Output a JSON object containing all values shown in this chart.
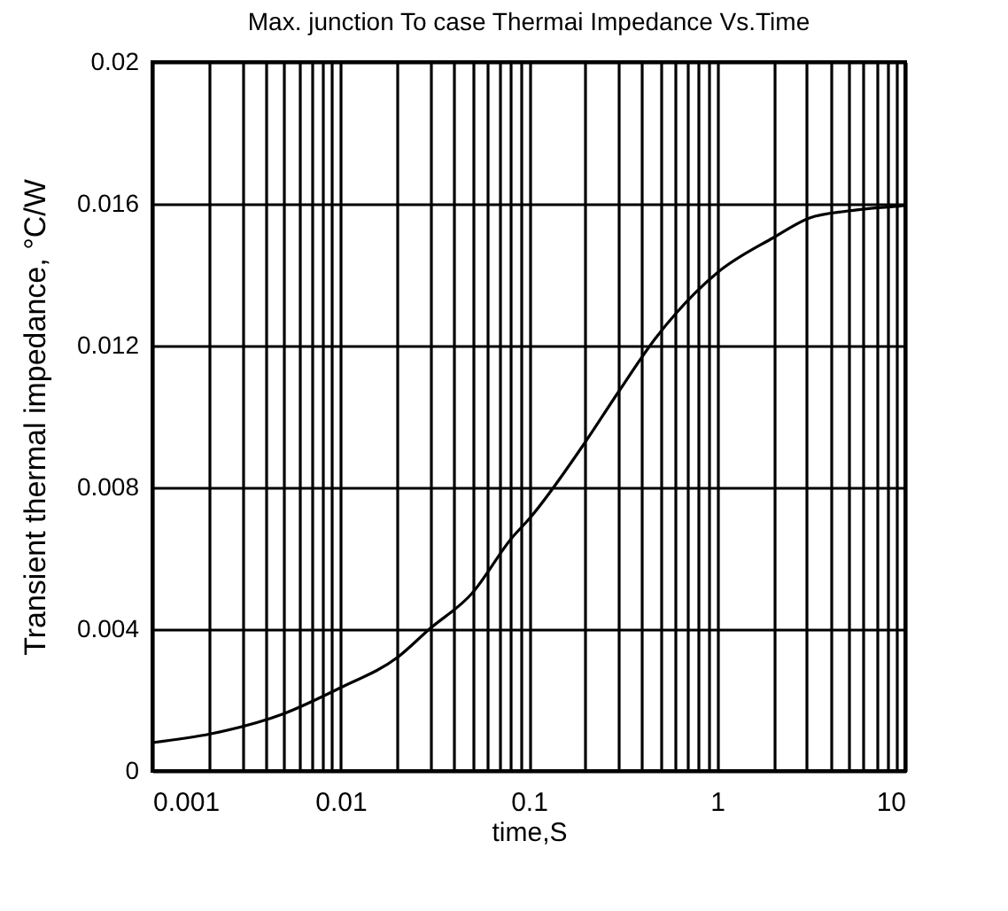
{
  "chart_data": {
    "type": "line",
    "title": "Max. junction To case Thermai Impedance Vs.Time",
    "xlabel": "time,S",
    "ylabel": "Transient thermal impedance, °C/W",
    "log": "x",
    "grid": true,
    "marker": "none",
    "line_style": "solid",
    "x": [
      0.001,
      0.00205,
      0.0049,
      0.01,
      0.02,
      0.0296,
      0.0497,
      0.082,
      0.1,
      0.195,
      0.3,
      0.47,
      1,
      2,
      3.1,
      5,
      10
    ],
    "series": [
      {
        "color": "#000000",
        "values": [
          0.0008,
          0.00105,
          0.0016,
          0.00235,
          0.0032,
          0.004,
          0.005,
          0.0066,
          0.0071,
          0.0092,
          0.0107,
          0.0122,
          0.01405,
          0.01505,
          0.0156,
          0.0158,
          0.01595
        ]
      }
    ],
    "xlim": [
      0.001,
      10
    ],
    "ylim": [
      0,
      0.02
    ],
    "xticks": [
      0.001,
      {
        "value": 0.002,
        "label": null
      },
      {
        "value": 0.003,
        "label": null
      },
      {
        "value": 0.004,
        "label": null
      },
      {
        "value": 0.005,
        "label": null
      },
      {
        "value": 0.006,
        "label": null
      },
      {
        "value": 0.007,
        "label": null
      },
      {
        "value": 0.008,
        "label": null
      },
      {
        "value": 0.009,
        "label": null
      },
      0.01,
      {
        "value": 0.02,
        "label": null
      },
      {
        "value": 0.03,
        "label": null
      },
      {
        "value": 0.04,
        "label": null
      },
      {
        "value": 0.05,
        "label": null
      },
      {
        "value": 0.06,
        "label": null
      },
      {
        "value": 0.07,
        "label": null
      },
      {
        "value": 0.08,
        "label": null
      },
      {
        "value": 0.09,
        "label": null
      },
      0.1,
      {
        "value": 0.2,
        "label": null
      },
      {
        "value": 0.3,
        "label": null
      },
      {
        "value": 0.4,
        "label": null
      },
      {
        "value": 0.5,
        "label": null
      },
      {
        "value": 0.6,
        "label": null
      },
      {
        "value": 0.7,
        "label": null
      },
      {
        "value": 0.8,
        "label": null
      },
      {
        "value": 0.9,
        "label": null
      },
      1,
      {
        "value": 2,
        "label": null
      },
      {
        "value": 3,
        "label": null
      },
      {
        "value": 4,
        "label": null
      },
      {
        "value": 5,
        "label": null
      },
      {
        "value": 6,
        "label": null
      },
      {
        "value": 7,
        "label": null
      },
      {
        "value": 8,
        "label": null
      },
      {
        "value": 9,
        "label": null
      },
      10
    ],
    "yticks": [
      0,
      0.004,
      0.008,
      0.012,
      0.016,
      0.02
    ]
  }
}
